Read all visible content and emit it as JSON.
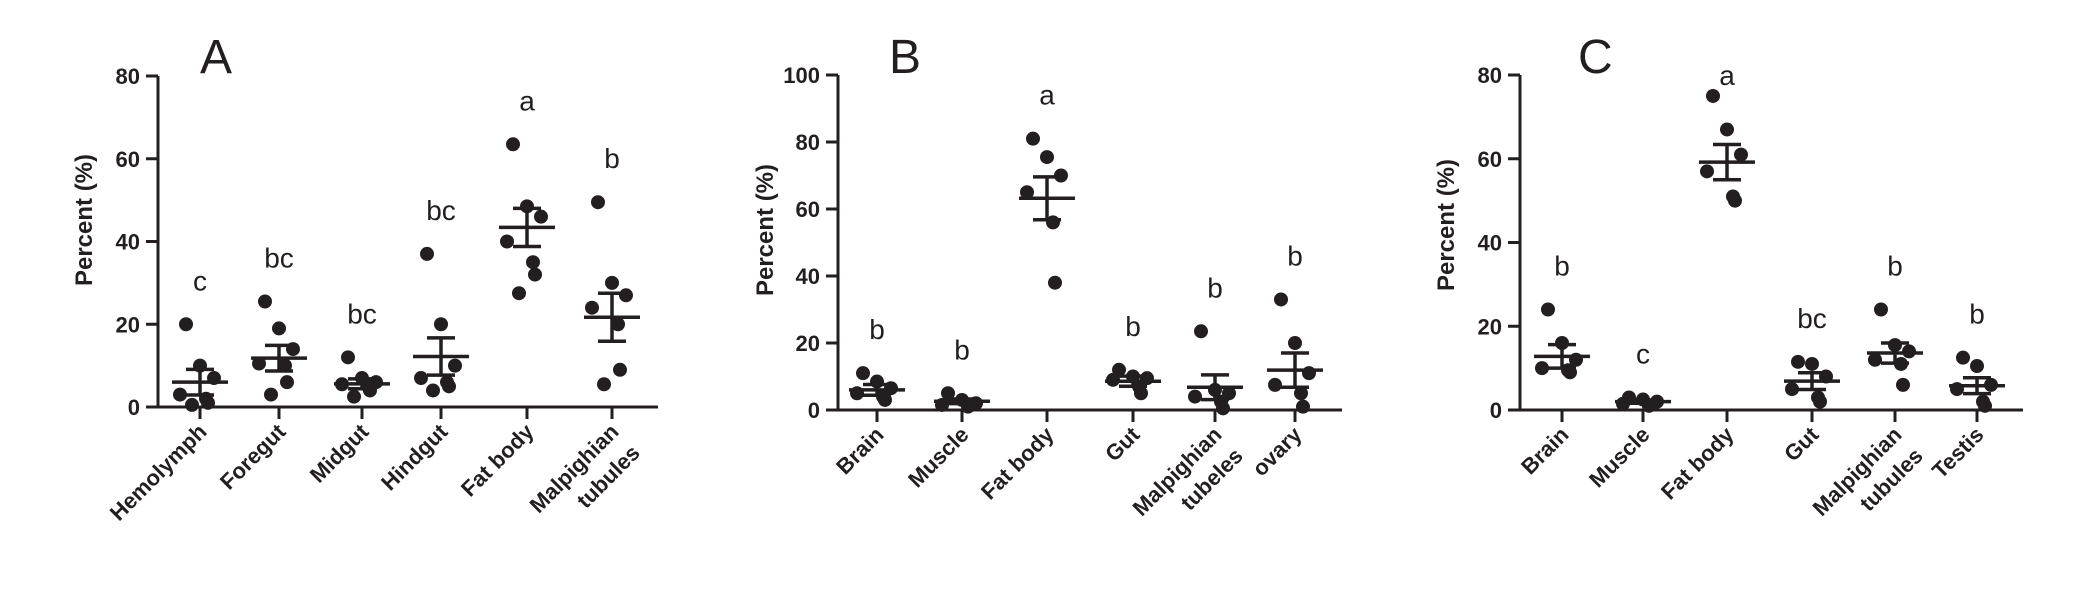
{
  "colors": {
    "ink": "#231f20",
    "background": "#ffffff"
  },
  "chart_data": [
    {
      "type": "scatter",
      "panel_label": "A",
      "ylabel": "Percent (%)",
      "ylim": [
        0,
        80
      ],
      "yticks": [
        "0",
        "20",
        "40",
        "60",
        "80"
      ],
      "categories": [
        {
          "name": "Hemolymph",
          "lines": [
            "Hemolymph"
          ]
        },
        {
          "name": "Foregut",
          "lines": [
            "Foregut"
          ]
        },
        {
          "name": "Midgut",
          "lines": [
            "Midgut"
          ]
        },
        {
          "name": "Hindgut",
          "lines": [
            "Hindgut"
          ]
        },
        {
          "name": "Fat body",
          "lines": [
            "Fat body"
          ]
        },
        {
          "name": "Malpighian tubules",
          "lines": [
            "Malpighian",
            "tubules"
          ]
        }
      ],
      "points": [
        [
          20,
          10,
          7,
          3,
          2,
          1,
          0.5
        ],
        [
          25.5,
          19,
          14,
          10.5,
          10,
          6,
          3
        ],
        [
          12,
          7,
          6,
          5.5,
          5,
          4,
          2.5
        ],
        [
          37,
          20,
          10,
          7,
          6,
          5,
          4
        ],
        [
          63.5,
          48.5,
          46,
          40,
          35,
          32,
          27.5
        ],
        [
          49.5,
          30,
          27,
          24,
          20,
          9,
          5.5
        ]
      ],
      "mean": [
        6,
        11.8,
        5.6,
        12.2,
        43.4,
        21.7
      ],
      "sem": [
        3.1,
        3.1,
        1.2,
        4.5,
        4.6,
        5.8
      ],
      "significance": [
        "c",
        "bc",
        "bc",
        "bc",
        "a",
        "b"
      ]
    },
    {
      "type": "scatter",
      "panel_label": "B",
      "ylabel": "Percent (%)",
      "ylim": [
        0,
        100
      ],
      "yticks": [
        "0",
        "20",
        "40",
        "60",
        "80",
        "100"
      ],
      "categories": [
        {
          "name": "Brain",
          "lines": [
            "Brain"
          ]
        },
        {
          "name": "Muscle",
          "lines": [
            "Muscle"
          ]
        },
        {
          "name": "Fat body",
          "lines": [
            "Fat body"
          ]
        },
        {
          "name": "Gut",
          "lines": [
            "Gut"
          ]
        },
        {
          "name": "Malpighian tubeles",
          "lines": [
            "Malpighian",
            "tubeles"
          ]
        },
        {
          "name": "ovary",
          "lines": [
            "ovary"
          ]
        }
      ],
      "points": [
        [
          11,
          8.5,
          6.5,
          5,
          4,
          3
        ],
        [
          5,
          3,
          2,
          1.5,
          1
        ],
        [
          81,
          75.5,
          70,
          65,
          56,
          38
        ],
        [
          12,
          10,
          9.5,
          9,
          7,
          5
        ],
        [
          23.5,
          6,
          5,
          4,
          2.5,
          0.5
        ],
        [
          33,
          20,
          11,
          7.5,
          5,
          1
        ]
      ],
      "mean": [
        6,
        2.6,
        63.2,
        8.6,
        6.8,
        11.9
      ],
      "sem": [
        1.6,
        0.7,
        6.4,
        1.5,
        3.7,
        5.1
      ],
      "significance": [
        "b",
        "b",
        "a",
        "b",
        "b",
        "b"
      ]
    },
    {
      "type": "scatter",
      "panel_label": "C",
      "ylabel": "Percent (%)",
      "ylim": [
        0,
        80
      ],
      "yticks": [
        "0",
        "20",
        "40",
        "60",
        "80"
      ],
      "categories": [
        {
          "name": "Brain",
          "lines": [
            "Brain"
          ]
        },
        {
          "name": "Muscle",
          "lines": [
            "Muscle"
          ]
        },
        {
          "name": "Fat body",
          "lines": [
            "Fat body"
          ]
        },
        {
          "name": "Gut",
          "lines": [
            "Gut"
          ]
        },
        {
          "name": "Malpighian tubules",
          "lines": [
            "Malpighian",
            "tubules"
          ]
        },
        {
          "name": "Testis",
          "lines": [
            "Testis"
          ]
        }
      ],
      "points": [
        [
          24,
          16,
          12,
          10,
          9.5,
          9
        ],
        [
          3,
          2.5,
          2,
          1.5,
          1
        ],
        [
          75,
          67,
          61,
          57,
          51,
          50
        ],
        [
          11.5,
          11,
          8,
          5,
          3,
          2
        ],
        [
          24,
          15.5,
          14,
          12,
          11,
          6
        ],
        [
          12.5,
          10.5,
          6,
          5,
          2,
          1
        ]
      ],
      "mean": [
        12.8,
        2,
        59.2,
        6.9,
        13.6,
        5.8
      ],
      "sem": [
        2.8,
        0.4,
        4.2,
        2,
        2.4,
        1.9
      ],
      "significance": [
        "b",
        "c",
        "a",
        "bc",
        "b",
        "b"
      ]
    }
  ]
}
